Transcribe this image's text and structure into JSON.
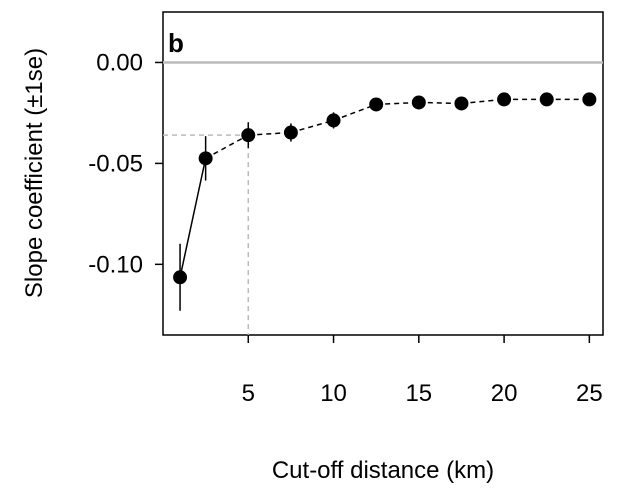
{
  "chart_data": {
    "type": "errorbar",
    "panel_label": "b",
    "x_label": "Cut-off distance (km)",
    "y_label": "Slope coefficient (±1se)",
    "x": [
      1,
      2.5,
      5,
      7.5,
      10,
      12.5,
      15,
      17.5,
      20,
      22.5,
      25
    ],
    "values": [
      -0.1064,
      -0.0475,
      -0.036,
      -0.0347,
      -0.0287,
      -0.0208,
      -0.0198,
      -0.0203,
      -0.0183,
      -0.0183,
      -0.0183
    ],
    "errors": [
      0.0166,
      0.011,
      0.0064,
      0.0045,
      0.004,
      0.003,
      0.003,
      0.003,
      0.003,
      0.003,
      0.003
    ],
    "segment_styles": [
      "solid",
      "dashed",
      "dashed",
      "dashed",
      "dashed",
      "dashed",
      "dashed",
      "dashed",
      "dashed",
      "dashed"
    ],
    "color": "#000000",
    "zero_line": {
      "y": 0,
      "color": "#bbbbbb"
    },
    "guide": {
      "x": 5,
      "y": -0.036,
      "color": "#bbbbbb"
    },
    "xlim": [
      0,
      25.8
    ],
    "ylim": [
      -0.135,
      0.025
    ],
    "xticks": [
      5,
      10,
      15,
      20,
      25
    ],
    "yticks": [
      {
        "value": 0,
        "label": "0.00"
      },
      {
        "value": -0.05,
        "label": "-0.05"
      },
      {
        "value": -0.1,
        "label": "-0.10"
      }
    ]
  }
}
